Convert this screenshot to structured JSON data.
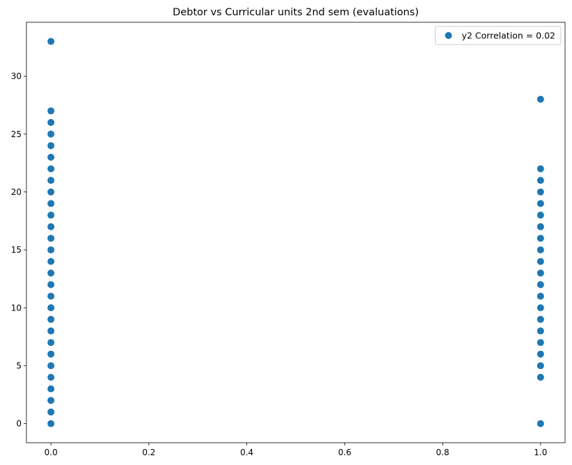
{
  "chart_data": {
    "type": "scatter",
    "title": "Debtor vs Curricular units 2nd sem (evaluations)",
    "xlabel": "",
    "ylabel": "",
    "xlim": [
      -0.05,
      1.05
    ],
    "ylim": [
      -1.65,
      34.65
    ],
    "xticks": [
      0.0,
      0.2,
      0.4,
      0.6,
      0.8,
      1.0
    ],
    "xtick_labels": [
      "0.0",
      "0.2",
      "0.4",
      "0.6",
      "0.8",
      "1.0"
    ],
    "yticks": [
      0,
      5,
      10,
      15,
      20,
      25,
      30
    ],
    "ytick_labels": [
      "0",
      "5",
      "10",
      "15",
      "20",
      "25",
      "30"
    ],
    "grid": false,
    "legend_position": "top-right",
    "colors": {
      "series": "#1f77b4",
      "axes": "#000000",
      "background": "#ffffff"
    },
    "series": [
      {
        "name": "y2 Correlation = 0.02",
        "points": [
          {
            "x": 0,
            "y": 0
          },
          {
            "x": 0,
            "y": 1
          },
          {
            "x": 0,
            "y": 2
          },
          {
            "x": 0,
            "y": 3
          },
          {
            "x": 0,
            "y": 4
          },
          {
            "x": 0,
            "y": 5
          },
          {
            "x": 0,
            "y": 6
          },
          {
            "x": 0,
            "y": 7
          },
          {
            "x": 0,
            "y": 8
          },
          {
            "x": 0,
            "y": 9
          },
          {
            "x": 0,
            "y": 10
          },
          {
            "x": 0,
            "y": 11
          },
          {
            "x": 0,
            "y": 12
          },
          {
            "x": 0,
            "y": 13
          },
          {
            "x": 0,
            "y": 14
          },
          {
            "x": 0,
            "y": 15
          },
          {
            "x": 0,
            "y": 16
          },
          {
            "x": 0,
            "y": 17
          },
          {
            "x": 0,
            "y": 18
          },
          {
            "x": 0,
            "y": 19
          },
          {
            "x": 0,
            "y": 20
          },
          {
            "x": 0,
            "y": 21
          },
          {
            "x": 0,
            "y": 22
          },
          {
            "x": 0,
            "y": 23
          },
          {
            "x": 0,
            "y": 24
          },
          {
            "x": 0,
            "y": 25
          },
          {
            "x": 0,
            "y": 26
          },
          {
            "x": 0,
            "y": 27
          },
          {
            "x": 0,
            "y": 33
          },
          {
            "x": 1,
            "y": 0
          },
          {
            "x": 1,
            "y": 4
          },
          {
            "x": 1,
            "y": 5
          },
          {
            "x": 1,
            "y": 6
          },
          {
            "x": 1,
            "y": 7
          },
          {
            "x": 1,
            "y": 8
          },
          {
            "x": 1,
            "y": 9
          },
          {
            "x": 1,
            "y": 10
          },
          {
            "x": 1,
            "y": 11
          },
          {
            "x": 1,
            "y": 12
          },
          {
            "x": 1,
            "y": 13
          },
          {
            "x": 1,
            "y": 14
          },
          {
            "x": 1,
            "y": 15
          },
          {
            "x": 1,
            "y": 16
          },
          {
            "x": 1,
            "y": 17
          },
          {
            "x": 1,
            "y": 18
          },
          {
            "x": 1,
            "y": 19
          },
          {
            "x": 1,
            "y": 20
          },
          {
            "x": 1,
            "y": 21
          },
          {
            "x": 1,
            "y": 22
          },
          {
            "x": 1,
            "y": 28
          }
        ]
      }
    ]
  }
}
